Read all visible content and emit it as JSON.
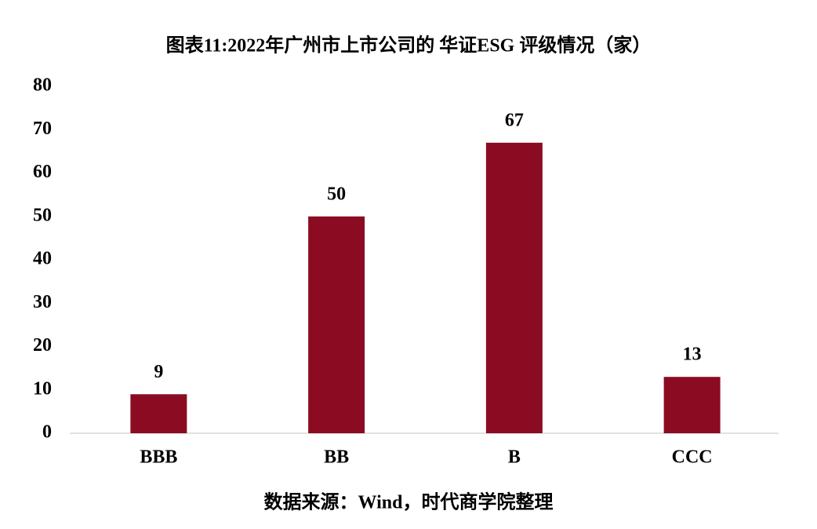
{
  "chart_data": {
    "type": "bar",
    "title": "图表11:2022年广州市上市公司的 华证ESG 评级情况（家）",
    "categories": [
      "BBB",
      "BB",
      "B",
      "CCC"
    ],
    "values": [
      9,
      50,
      67,
      13
    ],
    "color": "#8b0c22",
    "ylim": [
      0,
      80
    ],
    "yticks": [
      0,
      10,
      20,
      30,
      40,
      50,
      60,
      70,
      80
    ],
    "grid": false,
    "source": "数据来源：Wind，时代商学院整理"
  }
}
